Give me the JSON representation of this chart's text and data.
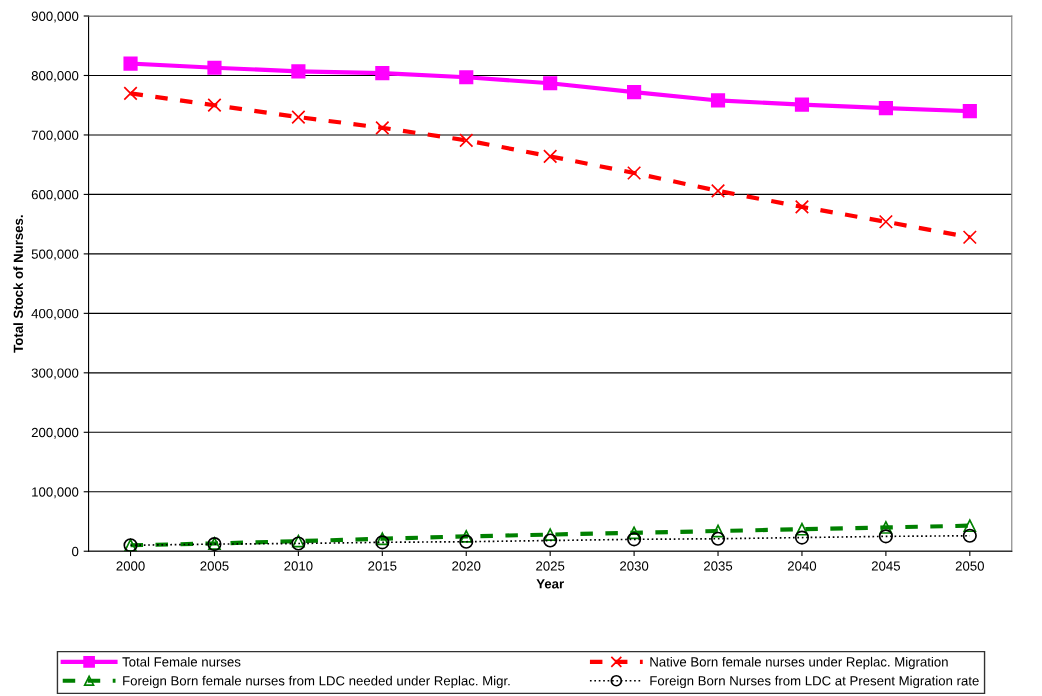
{
  "chart_data": {
    "type": "line",
    "xlabel": "Year",
    "ylabel": "Total Stock of Nurses.",
    "categories": [
      "2000",
      "2005",
      "2010",
      "2015",
      "2020",
      "2025",
      "2030",
      "2035",
      "2040",
      "2045",
      "2050"
    ],
    "series": [
      {
        "name": "Total Female nurses",
        "color": "#ff00ff",
        "marker": "square",
        "line_style": "solid",
        "values": [
          820000,
          813000,
          807000,
          804000,
          797000,
          787000,
          772000,
          758000,
          751000,
          745000,
          740000
        ]
      },
      {
        "name": "Native Born female nurses under Replac. Migration",
        "color": "#ff0000",
        "marker": "cross",
        "line_style": "dashed",
        "values": [
          770000,
          750000,
          730000,
          712000,
          691000,
          664000,
          636000,
          606000,
          579000,
          554000,
          528000
        ]
      },
      {
        "name": "Foreign Born female nurses from LDC needed under Replac. Migr.",
        "color": "#008000",
        "marker": "triangle",
        "line_style": "dashed",
        "values": [
          10000,
          13000,
          17000,
          21000,
          25000,
          28000,
          31000,
          34000,
          37000,
          40000,
          43000
        ]
      },
      {
        "name": "Foreign Born Nurses from LDC at Present Migration rate",
        "color": "#000000",
        "marker": "circle",
        "line_style": "dotted",
        "values": [
          10000,
          12000,
          13000,
          15000,
          16000,
          18000,
          20000,
          21000,
          23000,
          25000,
          26000
        ]
      }
    ],
    "ylim": [
      0,
      900000
    ],
    "yticks": [
      {
        "value": 0,
        "label": "0"
      },
      {
        "value": 100000,
        "label": "100,000"
      },
      {
        "value": 200000,
        "label": "200,000"
      },
      {
        "value": 300000,
        "label": "300,000"
      },
      {
        "value": 400000,
        "label": "400,000"
      },
      {
        "value": 500000,
        "label": "500,000"
      },
      {
        "value": 600000,
        "label": "600,000"
      },
      {
        "value": 700000,
        "label": "700,000"
      },
      {
        "value": 800000,
        "label": "800,000"
      },
      {
        "value": 900000,
        "label": "900,000"
      }
    ],
    "grid": "y",
    "legend": "bottom"
  }
}
